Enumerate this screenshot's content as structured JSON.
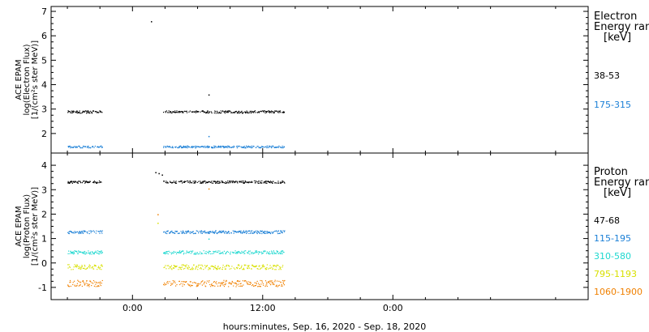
{
  "chart_data": {
    "type": "scatter",
    "xlabel": "hours:minutes, Sep. 16, 2020 - Sep. 18, 2020",
    "x_unit": "hours",
    "xlim": [
      -19.5,
      30
    ],
    "x_ticks": [
      {
        "value": -12,
        "label": "0:00"
      },
      {
        "value": 0,
        "label": "12:00"
      },
      {
        "value": 12,
        "label": "0:00"
      }
    ],
    "data_gaps": [
      [
        -14.8,
        -9.2
      ]
    ],
    "data_range": [
      -18,
      2.0
    ],
    "panels": [
      {
        "name": "electron",
        "ylabel_lines": [
          "ACE EPAM",
          "log(Electron Flux)",
          "[1/(cm²s ster MeV)]"
        ],
        "ylim": [
          1.2,
          7.2
        ],
        "y_ticks": [
          "2",
          "3",
          "4",
          "5",
          "6",
          "7"
        ],
        "legend_title": [
          "Electron",
          "Energy ranges",
          "[keV]"
        ],
        "series": [
          {
            "name": "38-53",
            "color": "#000000",
            "level": 2.9,
            "scatter": 0.05
          },
          {
            "name": "175-315",
            "color": "#1a7fd6",
            "level": 1.47,
            "scatter": 0.04
          }
        ],
        "outliers": [
          {
            "x": -10.3,
            "y": 6.6,
            "color": "#000000"
          },
          {
            "x": -5.0,
            "y": 3.6,
            "color": "#000000"
          },
          {
            "x": -5.0,
            "y": 1.9,
            "color": "#1a7fd6"
          }
        ]
      },
      {
        "name": "proton",
        "ylabel_lines": [
          "ACE EPAM",
          "log(Proton Flux)",
          "[1/(cm²s ster MeV)]"
        ],
        "ylim": [
          -1.5,
          4.5
        ],
        "y_ticks": [
          "-1",
          "0",
          "1",
          "2",
          "3",
          "4"
        ],
        "legend_title": [
          "Proton",
          "Energy ranges",
          "[keV]"
        ],
        "series": [
          {
            "name": "47-68",
            "color": "#000000",
            "level": 3.33,
            "scatter": 0.05
          },
          {
            "name": "115-195",
            "color": "#1a7fd6",
            "level": 1.28,
            "scatter": 0.06
          },
          {
            "name": "310-580",
            "color": "#1ed8cf",
            "level": 0.45,
            "scatter": 0.07
          },
          {
            "name": "795-1193",
            "color": "#d8e000",
            "level": -0.15,
            "scatter": 0.1
          },
          {
            "name": "1060-1900",
            "color": "#f08000",
            "level": -0.82,
            "scatter": 0.13
          }
        ],
        "outliers": [
          {
            "x": -9.9,
            "y": 3.72,
            "color": "#000000"
          },
          {
            "x": -9.6,
            "y": 3.68,
            "color": "#000000"
          },
          {
            "x": -9.3,
            "y": 3.62,
            "color": "#000000"
          },
          {
            "x": -9.7,
            "y": 2.0,
            "color": "#f08000"
          },
          {
            "x": -9.7,
            "y": 1.65,
            "color": "#d8e000"
          },
          {
            "x": -5.0,
            "y": 3.05,
            "color": "#f08000"
          },
          {
            "x": -5.0,
            "y": 1.0,
            "color": "#1ed8cf"
          }
        ]
      }
    ]
  }
}
